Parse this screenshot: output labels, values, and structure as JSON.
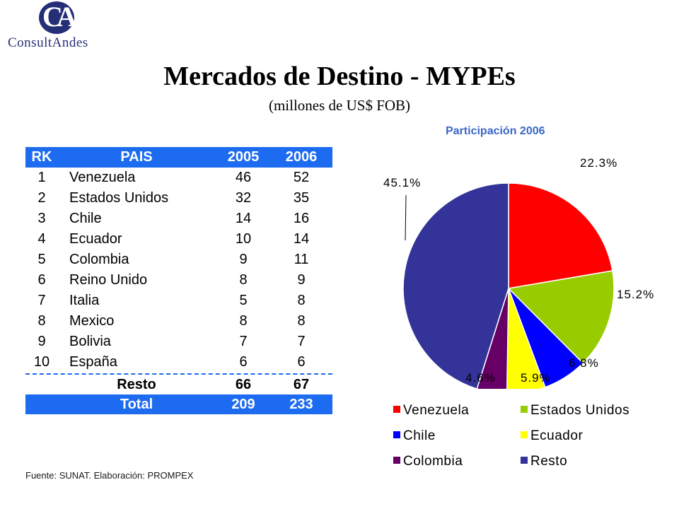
{
  "logo": {
    "letters": "CA",
    "name": "ConsultAndes"
  },
  "title": "Mercados de Destino - MYPEs",
  "subtitle": "(millones de US$ FOB)",
  "table": {
    "headers": {
      "rk": "RK",
      "pais": "PAIS",
      "y2005": "2005",
      "y2006": "2006"
    },
    "rows": [
      {
        "rk": "1",
        "pais": "Venezuela",
        "y2005": "46",
        "y2006": "52"
      },
      {
        "rk": "2",
        "pais": "Estados Unidos",
        "y2005": "32",
        "y2006": "35"
      },
      {
        "rk": "3",
        "pais": "Chile",
        "y2005": "14",
        "y2006": "16"
      },
      {
        "rk": "4",
        "pais": "Ecuador",
        "y2005": "10",
        "y2006": "14"
      },
      {
        "rk": "5",
        "pais": "Colombia",
        "y2005": "9",
        "y2006": "11"
      },
      {
        "rk": "6",
        "pais": "Reino Unido",
        "y2005": "8",
        "y2006": "9"
      },
      {
        "rk": "7",
        "pais": "Italia",
        "y2005": "5",
        "y2006": "8"
      },
      {
        "rk": "8",
        "pais": "Mexico",
        "y2005": "8",
        "y2006": "8"
      },
      {
        "rk": "9",
        "pais": "Bolivia",
        "y2005": "7",
        "y2006": "7"
      },
      {
        "rk": "10",
        "pais": "España",
        "y2005": "6",
        "y2006": "6"
      }
    ],
    "resto": {
      "label": "Resto",
      "y2005": "66",
      "y2006": "67"
    },
    "total": {
      "label": "Total",
      "y2005": "209",
      "y2006": "233"
    }
  },
  "source": "Fuente: SUNAT. Elaboración: PROMPEX",
  "chart_data": {
    "type": "pie",
    "title": "Participación 2006",
    "categories": [
      "Venezuela",
      "Estados Unidos",
      "Chile",
      "Ecuador",
      "Colombia",
      "Resto"
    ],
    "values": [
      22.3,
      15.2,
      6.8,
      5.9,
      4.6,
      45.1
    ],
    "labels": [
      "22.3%",
      "15.2%",
      "6.8%",
      "5.9%",
      "4.6%",
      "45.1%"
    ],
    "colors": [
      "#ff0000",
      "#99cc00",
      "#0000ff",
      "#ffff00",
      "#660066",
      "#333399"
    ],
    "legend_position": "bottom",
    "start_angle": "12 o'clock, clockwise"
  }
}
